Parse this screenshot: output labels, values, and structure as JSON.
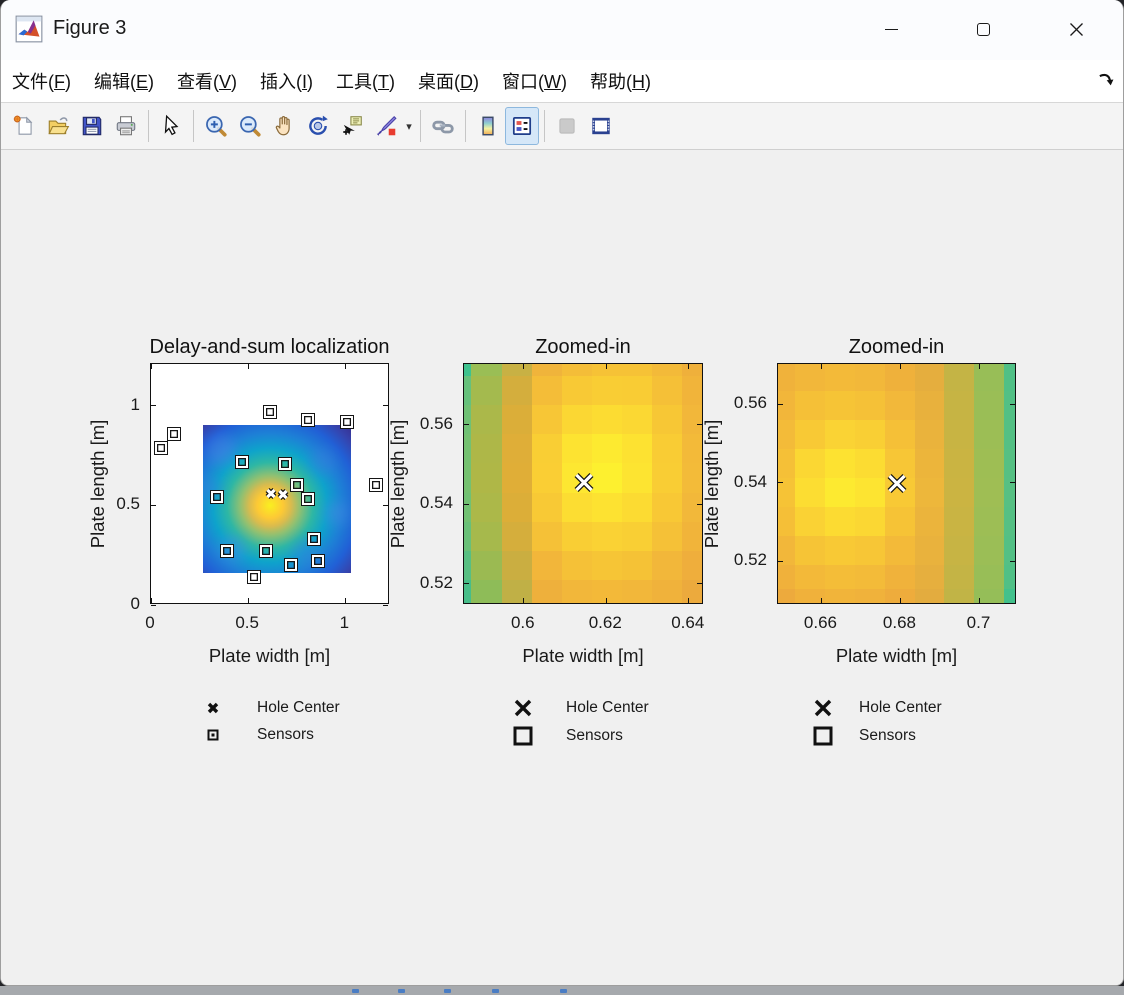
{
  "window": {
    "title": "Figure 3",
    "app_icon": "matlab-logo",
    "controls": [
      {
        "name": "minimize",
        "glyph": "minus"
      },
      {
        "name": "maximize",
        "glyph": "square"
      },
      {
        "name": "close",
        "glyph": "x"
      }
    ]
  },
  "menu": {
    "items": [
      {
        "label": "文件",
        "mnemonic": "F"
      },
      {
        "label": "编辑",
        "mnemonic": "E"
      },
      {
        "label": "查看",
        "mnemonic": "V"
      },
      {
        "label": "插入",
        "mnemonic": "I"
      },
      {
        "label": "工具",
        "mnemonic": "T"
      },
      {
        "label": "桌面",
        "mnemonic": "D"
      },
      {
        "label": "窗口",
        "mnemonic": "W"
      },
      {
        "label": "帮助",
        "mnemonic": "H"
      }
    ],
    "dock_arrow_icon": "dock-arrow-icon"
  },
  "toolbar": {
    "groups": [
      [
        {
          "icon": "new-figure"
        },
        {
          "icon": "open-file"
        },
        {
          "icon": "save-figure"
        },
        {
          "icon": "print-figure"
        }
      ],
      [
        {
          "icon": "edit-plot"
        }
      ],
      [
        {
          "icon": "zoom-in"
        },
        {
          "icon": "zoom-out"
        },
        {
          "icon": "pan"
        },
        {
          "icon": "rotate-3d"
        },
        {
          "icon": "data-cursor"
        },
        {
          "icon": "brush",
          "has_dropdown": true
        }
      ],
      [
        {
          "icon": "link-plot"
        }
      ],
      [
        {
          "icon": "insert-colorbar"
        },
        {
          "icon": "insert-legend",
          "active": true
        }
      ],
      [
        {
          "icon": "hide-plot-tools",
          "disabled": true
        },
        {
          "icon": "dock-figure"
        }
      ]
    ]
  },
  "colors": {
    "figure_bg": "#f0f0f0",
    "active_button_bg": "#d5e7f8",
    "active_button_border": "#8db8de",
    "axes_line": "#111111"
  },
  "chart_data": [
    {
      "type": "heatmap",
      "title": "Delay-and-sum localization",
      "xlabel": "Plate width [m]",
      "ylabel": "Plate length [m]",
      "xlim": [
        0,
        1.23
      ],
      "ylim": [
        0,
        1.21
      ],
      "xticks": [
        {
          "v": 0,
          "label": "0"
        },
        {
          "v": 0.5,
          "label": "0.5"
        },
        {
          "v": 1,
          "label": "1"
        }
      ],
      "yticks": [
        {
          "v": 0,
          "label": "0"
        },
        {
          "v": 0.5,
          "label": "0.5"
        },
        {
          "v": 1,
          "label": "1"
        }
      ],
      "heatmap": {
        "style": "blob",
        "extent": [
          0.27,
          1.03,
          0.16,
          0.904
        ],
        "blob_center": [
          0.615,
          0.5
        ],
        "blob_stops": [
          {
            "color": "#f9ef20",
            "r": 0
          },
          {
            "color": "#fdc935",
            "r": 13
          },
          {
            "color": "#d9bb4e",
            "r": 21
          },
          {
            "color": "#8fc072",
            "r": 30
          },
          {
            "color": "#2eb7a4",
            "r": 43
          },
          {
            "color": "#0ea3cb",
            "r": 57
          },
          {
            "color": "#1d81d6",
            "r": 72
          },
          {
            "color": "#2160d6",
            "r": 88
          },
          {
            "color": "#3544ae",
            "r": 102
          },
          {
            "color": "#372c8c",
            "r": 115
          }
        ],
        "noise_patches": [
          {
            "x": 0.36,
            "y": 0.78,
            "r": 15,
            "color": "#4f86e8"
          },
          {
            "x": 0.88,
            "y": 0.72,
            "r": 13,
            "color": "#3f7be0"
          },
          {
            "x": 0.42,
            "y": 0.28,
            "r": 13,
            "color": "#4f86e8"
          },
          {
            "x": 0.8,
            "y": 0.26,
            "r": 14,
            "color": "#3f7be0"
          },
          {
            "x": 0.95,
            "y": 0.46,
            "r": 12,
            "color": "#4f86e8"
          },
          {
            "x": 0.31,
            "y": 0.58,
            "r": 11,
            "color": "#3f7be0"
          }
        ]
      },
      "hole_centers": [
        [
          0.615,
          0.545
        ],
        [
          0.68,
          0.54
        ]
      ],
      "sensors": [
        [
          0.61,
          0.97
        ],
        [
          0.81,
          0.93
        ],
        [
          1.01,
          0.92
        ],
        [
          0.12,
          0.86
        ],
        [
          0.05,
          0.79
        ],
        [
          0.47,
          0.72
        ],
        [
          0.69,
          0.71
        ],
        [
          1.16,
          0.6
        ],
        [
          0.75,
          0.6
        ],
        [
          0.34,
          0.54
        ],
        [
          0.81,
          0.53
        ],
        [
          0.84,
          0.33
        ],
        [
          0.39,
          0.27
        ],
        [
          0.59,
          0.27
        ],
        [
          0.72,
          0.2
        ],
        [
          0.86,
          0.22
        ],
        [
          0.53,
          0.14
        ]
      ],
      "legend": {
        "size": "small",
        "entries": [
          {
            "marker": "x",
            "label": "Hole Center"
          },
          {
            "marker": "square",
            "label": "Sensors"
          }
        ]
      }
    },
    {
      "type": "heatmap",
      "title": "Zoomed-in",
      "xlabel": "Plate width [m]",
      "ylabel": "Plate length [m]",
      "xlim": [
        0.5855,
        0.6437
      ],
      "ylim": [
        0.5147,
        0.5753
      ],
      "xticks": [
        {
          "v": 0.6,
          "label": "0.6"
        },
        {
          "v": 0.62,
          "label": "0.62"
        },
        {
          "v": 0.64,
          "label": "0.64"
        }
      ],
      "yticks": [
        {
          "v": 0.52,
          "label": "0.52"
        },
        {
          "v": 0.54,
          "label": "0.54"
        },
        {
          "v": 0.56,
          "label": "0.56"
        }
      ],
      "heatmap": {
        "style": "grid",
        "x_edges": [
          0.5855,
          0.5873,
          0.5946,
          0.6019,
          0.6092,
          0.6165,
          0.6238,
          0.6311,
          0.6384,
          0.6437
        ],
        "y_edges": [
          0.5753,
          0.5723,
          0.565,
          0.5577,
          0.5504,
          0.5429,
          0.5356,
          0.5283,
          0.521,
          0.5147
        ],
        "colors": [
          [
            "#3ec28e",
            "#9abe55",
            "#c8b144",
            "#f0b43b",
            "#f4bd38",
            "#f6c236",
            "#f6c236",
            "#f3ba39",
            "#efb03b"
          ],
          [
            "#66c17c",
            "#a4ba4e",
            "#d4ae3d",
            "#f4bd38",
            "#f8c935",
            "#f9cd34",
            "#f9cc34",
            "#f5c037",
            "#f1b43a"
          ],
          [
            "#6fc175",
            "#abb84a",
            "#dbae39",
            "#f7c636",
            "#fbd733",
            "#fcdc32",
            "#fbd833",
            "#f7c735",
            "#f2b73a"
          ],
          [
            "#74c171",
            "#aeb748",
            "#dfae38",
            "#f9ce34",
            "#fde331",
            "#fdea30",
            "#fde231",
            "#f9cc34",
            "#f3ba39"
          ],
          [
            "#75c170",
            "#afb747",
            "#e0ae37",
            "#face34",
            "#fde731",
            "#fdf02f",
            "#fde431",
            "#f9cd34",
            "#f3bb39"
          ],
          [
            "#71c173",
            "#acb849",
            "#dcae38",
            "#f8c935",
            "#fcdd32",
            "#fde231",
            "#fcdb32",
            "#f8c835",
            "#f2b83a"
          ],
          [
            "#69c078",
            "#a6b94c",
            "#d5ae3c",
            "#f5c137",
            "#f9ce34",
            "#fad234",
            "#f9cf34",
            "#f5c137",
            "#f1b43a"
          ],
          [
            "#58bf82",
            "#9bba52",
            "#caae41",
            "#f2b63a",
            "#f5c137",
            "#f6c536",
            "#f5c236",
            "#f2b73a",
            "#efae3c"
          ],
          [
            "#47bd89",
            "#8ebc58",
            "#c0b046",
            "#eeb03c",
            "#f2b73a",
            "#f3b939",
            "#f2b73a",
            "#f0b23b",
            "#ecaa3d"
          ]
        ]
      },
      "hole_centers": [
        [
          0.6145,
          0.5448
        ]
      ],
      "sensors": [],
      "legend": {
        "size": "large",
        "entries": [
          {
            "marker": "x",
            "label": "Hole Center"
          },
          {
            "marker": "square",
            "label": "Sensors"
          }
        ]
      }
    },
    {
      "type": "heatmap",
      "title": "Zoomed-in",
      "xlabel": "Plate width [m]",
      "ylabel": "Plate length [m]",
      "xlim": [
        0.649,
        0.7095
      ],
      "ylim": [
        0.5088,
        0.5702
      ],
      "xticks": [
        {
          "v": 0.66,
          "label": "0.66"
        },
        {
          "v": 0.68,
          "label": "0.68"
        },
        {
          "v": 0.7,
          "label": "0.7"
        }
      ],
      "yticks": [
        {
          "v": 0.52,
          "label": "0.52"
        },
        {
          "v": 0.54,
          "label": "0.54"
        },
        {
          "v": 0.56,
          "label": "0.56"
        }
      ],
      "heatmap": {
        "style": "grid",
        "x_edges": [
          0.649,
          0.6533,
          0.6609,
          0.6685,
          0.6761,
          0.6837,
          0.6909,
          0.6985,
          0.7061,
          0.7095
        ],
        "y_edges": [
          0.5702,
          0.5633,
          0.5559,
          0.5486,
          0.5412,
          0.5338,
          0.5264,
          0.519,
          0.5129,
          0.5088
        ],
        "colors": [
          [
            "#f0b23b",
            "#f2b73a",
            "#f3ba39",
            "#f2b83a",
            "#efb13b",
            "#e5ae3e",
            "#c4b445",
            "#98be57",
            "#50c086"
          ],
          [
            "#f2b63a",
            "#f5c037",
            "#f6c436",
            "#f5c137",
            "#f2b83a",
            "#e8b13d",
            "#c6b444",
            "#9abe56",
            "#52c085"
          ],
          [
            "#f3bb39",
            "#f8c935",
            "#fad334",
            "#f9cf34",
            "#f5c037",
            "#eab33c",
            "#c8b443",
            "#9cbe55",
            "#54c084"
          ],
          [
            "#f5c037",
            "#fbd733",
            "#fde231",
            "#fcdc32",
            "#f7c636",
            "#ecb53b",
            "#cab442",
            "#9ebe54",
            "#56c083"
          ],
          [
            "#f6c336",
            "#fcdd32",
            "#fdea30",
            "#fde431",
            "#f8c935",
            "#edb73b",
            "#cbb442",
            "#9fbe54",
            "#57c083"
          ],
          [
            "#f5bf37",
            "#fad234",
            "#fcdb32",
            "#fbd733",
            "#f6c336",
            "#ebb43c",
            "#c9b443",
            "#9dbe55",
            "#55c084"
          ],
          [
            "#f2b73a",
            "#f6c436",
            "#f8c935",
            "#f7c636",
            "#f3ba39",
            "#e9b23d",
            "#c7b444",
            "#9bbe56",
            "#53c085"
          ],
          [
            "#f0b13b",
            "#f3b939",
            "#f4bd38",
            "#f3bb39",
            "#f0b23b",
            "#e6af3e",
            "#c4b445",
            "#98be57",
            "#50c086"
          ],
          [
            "#edaa3d",
            "#f0b13b",
            "#f1b43a",
            "#f0b23b",
            "#eeac3c",
            "#e3ac3f",
            "#c1b446",
            "#95be58",
            "#42c18c"
          ]
        ]
      },
      "hole_centers": [
        [
          0.679,
          0.539
        ]
      ],
      "sensors": [],
      "legend": {
        "size": "large",
        "entries": [
          {
            "marker": "x",
            "label": "Hole Center"
          },
          {
            "marker": "square",
            "label": "Sensors"
          }
        ]
      }
    }
  ]
}
